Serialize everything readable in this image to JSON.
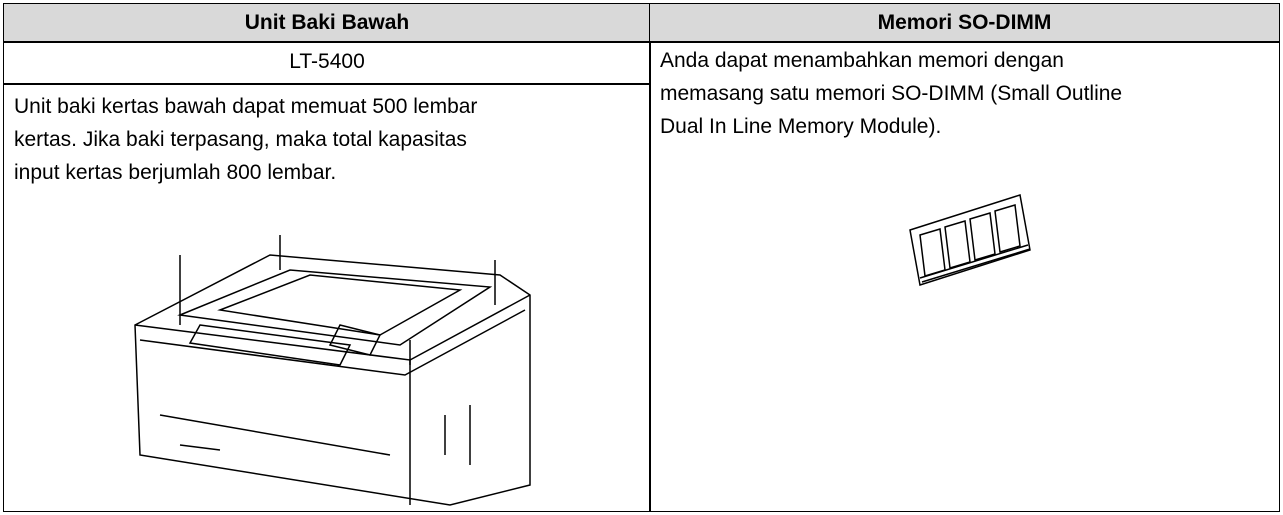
{
  "table": {
    "headers": [
      "Unit Baki Bawah",
      "Memori SO-DIMM"
    ],
    "left": {
      "model": "LT-5400",
      "description": [
        "Unit baki kertas bawah dapat memuat 500 lembar",
        "kertas. Jika baki terpasang, maka total kapasitas",
        "input kertas berjumlah 800 lembar."
      ]
    },
    "right": {
      "description": [
        "Anda dapat menambahkan memori dengan",
        "memasang satu memori SO-DIMM (Small Outline",
        "Dual In Line Memory Module)."
      ]
    }
  }
}
